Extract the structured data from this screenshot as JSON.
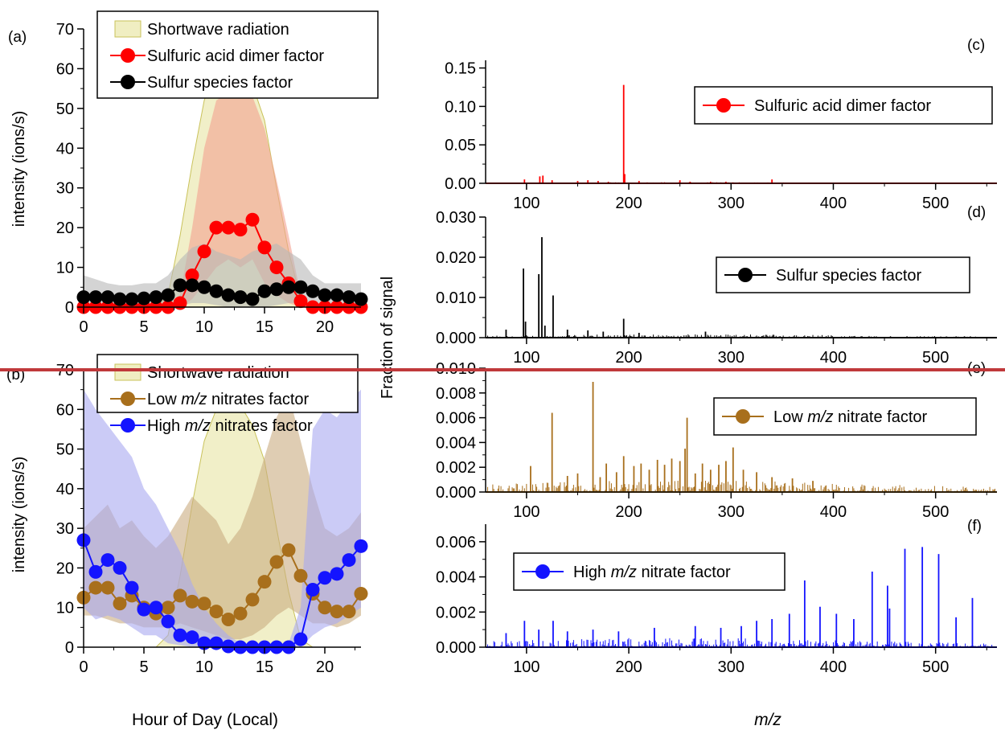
{
  "figure": {
    "xlabel_left": "Hour of Day (Local)",
    "xlabel_right": "m/z",
    "ylabel_left_top": "intensity (ions/s)",
    "ylabel_left_bottom": "intensity (ions/s)",
    "ylabel_right": "Fraction of signal",
    "divider_color": "#c0393b"
  },
  "chart_data": [
    {
      "id": "a",
      "panel_label": "(a)",
      "type": "line",
      "xlim": [
        0,
        23
      ],
      "ylim": [
        0,
        70
      ],
      "xticks": [
        0,
        5,
        10,
        15,
        20
      ],
      "yticks": [
        0,
        10,
        20,
        30,
        40,
        50,
        60,
        70
      ],
      "xlabel": "Hour of Day (Local)",
      "ylabel": "intensity (ions/s)",
      "legend_position": "top",
      "x": [
        0,
        1,
        2,
        3,
        4,
        5,
        6,
        7,
        8,
        9,
        10,
        11,
        12,
        13,
        14,
        15,
        16,
        17,
        18,
        19,
        20,
        21,
        22,
        23
      ],
      "series": [
        {
          "name": "Shortwave radiation",
          "kind": "area",
          "color": "#e6e29a",
          "band_upper": [
            0,
            0,
            0,
            0,
            0,
            0,
            0,
            3,
            18,
            36,
            52,
            60,
            63,
            61,
            56,
            47,
            30,
            14,
            2,
            0,
            0,
            0,
            0,
            0
          ]
        },
        {
          "name": "Sulfuric acid dimer factor",
          "kind": "line-markers",
          "color": "#ff0000",
          "band_color": "#f4a090",
          "values": [
            0,
            0,
            0,
            0,
            0,
            0,
            0,
            0,
            1,
            8,
            14,
            20,
            20,
            19.5,
            22,
            15,
            10,
            6,
            1.5,
            0,
            0,
            0,
            0,
            0
          ],
          "band_lower": [
            0,
            0,
            0,
            0,
            0,
            0,
            0,
            0,
            0,
            2,
            6,
            10,
            12,
            10,
            12,
            6,
            3,
            1,
            0,
            0,
            0,
            0,
            0,
            0
          ],
          "band_upper": [
            0,
            0,
            0,
            0,
            0,
            0,
            0,
            0,
            3,
            20,
            40,
            52,
            54,
            53,
            53,
            45,
            32,
            18,
            3,
            0,
            0,
            0,
            0,
            0
          ]
        },
        {
          "name": "Sulfur species factor",
          "kind": "line-markers",
          "color": "#000000",
          "band_color": "#b8b8b8",
          "values": [
            2.5,
            2.5,
            2.5,
            2,
            2,
            2.2,
            2.5,
            3,
            5.5,
            5.5,
            5,
            4,
            3,
            2.5,
            2,
            4,
            4.5,
            5,
            5,
            4,
            3,
            3,
            2.5,
            2
          ],
          "band_lower": [
            0,
            0,
            0,
            0,
            0,
            0,
            0,
            0,
            0.5,
            1,
            1,
            0.5,
            0,
            0,
            0,
            0,
            0.5,
            1,
            1,
            0.5,
            0,
            0,
            0,
            0
          ],
          "band_upper": [
            8,
            7,
            6,
            5.5,
            5.5,
            6,
            6,
            8,
            12,
            15,
            16,
            14,
            13,
            12,
            14,
            15,
            16,
            14,
            12,
            8,
            6,
            6,
            6,
            6
          ]
        }
      ]
    },
    {
      "id": "b",
      "panel_label": "(b)",
      "type": "line",
      "xlim": [
        0,
        23
      ],
      "ylim": [
        0,
        70
      ],
      "xticks": [
        0,
        5,
        10,
        15,
        20
      ],
      "yticks": [
        0,
        10,
        20,
        30,
        40,
        50,
        60,
        70
      ],
      "xlabel": "Hour of Day (Local)",
      "ylabel": "intensity (ions/s)",
      "legend_position": "top",
      "x": [
        0,
        1,
        2,
        3,
        4,
        5,
        6,
        7,
        8,
        9,
        10,
        11,
        12,
        13,
        14,
        15,
        16,
        17,
        18,
        19,
        20,
        21,
        22,
        23
      ],
      "series": [
        {
          "name": "Shortwave radiation",
          "kind": "area",
          "color": "#e6e29a",
          "band_upper": [
            0,
            0,
            0,
            0,
            0,
            0,
            0,
            3,
            18,
            36,
            52,
            60,
            63,
            61,
            56,
            47,
            30,
            14,
            2,
            0,
            0,
            0,
            0,
            0
          ]
        },
        {
          "name": "Low m/z nitrates factor",
          "kind": "line-markers",
          "color": "#a86f1c",
          "band_color": "#c9ab80",
          "values": [
            12.5,
            15,
            15,
            11,
            13,
            10,
            8.5,
            10,
            13,
            11.5,
            11,
            9,
            7,
            8.5,
            12,
            16.5,
            21.5,
            24.5,
            18,
            13.5,
            10,
            9,
            9,
            13.5
          ],
          "band_lower": [
            8,
            8,
            7,
            6,
            6,
            5,
            5,
            5,
            6,
            5,
            4,
            3,
            2,
            2,
            3,
            5,
            8,
            10,
            8,
            6,
            6,
            5,
            6,
            8
          ],
          "band_upper": [
            30,
            33,
            36,
            30,
            32,
            28,
            25,
            28,
            33,
            38,
            35,
            32,
            26,
            30,
            38,
            48,
            58,
            64,
            52,
            40,
            30,
            28,
            30,
            34
          ]
        },
        {
          "name": "High m/z nitrates factor",
          "kind": "line-markers",
          "color": "#1414ff",
          "band_color": "#a9a9f0",
          "values": [
            27,
            19,
            22,
            20,
            15,
            9.5,
            10,
            6.5,
            3,
            2.5,
            1,
            1,
            0.2,
            0,
            0,
            0,
            0,
            0,
            2,
            14.5,
            17.5,
            18.5,
            22,
            25.5
          ],
          "band_lower": [
            10,
            7,
            8,
            7,
            5,
            3,
            3,
            1,
            0.5,
            0,
            0,
            0,
            0,
            0,
            0,
            0,
            0,
            0,
            0,
            3,
            5,
            6,
            8,
            10
          ],
          "band_upper": [
            65,
            60,
            56,
            52,
            48,
            40,
            36,
            30,
            24,
            16,
            10,
            6,
            3,
            1,
            0.5,
            0.5,
            0.5,
            1,
            10,
            55,
            60,
            58,
            62,
            65
          ]
        }
      ]
    },
    {
      "id": "c",
      "panel_label": "(c)",
      "type": "bar",
      "xlim": [
        60,
        560
      ],
      "ylim": [
        0,
        0.16
      ],
      "xticks": [
        100,
        200,
        300,
        400,
        500
      ],
      "yticks": [
        0.0,
        0.05,
        0.1,
        0.15
      ],
      "ytick_labels": [
        "0.00",
        "0.05",
        "0.10",
        "0.15"
      ],
      "legend": "Sulfuric acid dimer factor",
      "legend_position": "upper-right",
      "color": "#ff0000",
      "peaks": [
        [
          98,
          0.005
        ],
        [
          113,
          0.009
        ],
        [
          116,
          0.01
        ],
        [
          125,
          0.004
        ],
        [
          150,
          0.003
        ],
        [
          160,
          0.004
        ],
        [
          170,
          0.003
        ],
        [
          180,
          0.002
        ],
        [
          195,
          0.128
        ],
        [
          196,
          0.012
        ],
        [
          210,
          0.003
        ],
        [
          250,
          0.004
        ],
        [
          260,
          0.002
        ],
        [
          280,
          0.002
        ],
        [
          295,
          0.002
        ],
        [
          340,
          0.005
        ]
      ],
      "noise_level": 0.0012
    },
    {
      "id": "d",
      "panel_label": "(d)",
      "type": "bar",
      "xlim": [
        60,
        560
      ],
      "ylim": [
        0,
        0.03
      ],
      "xticks": [
        100,
        200,
        300,
        400,
        500
      ],
      "yticks": [
        0.0,
        0.01,
        0.02,
        0.03
      ],
      "ytick_labels": [
        "0.000",
        "0.010",
        "0.020",
        "0.030"
      ],
      "legend": "Sulfur species factor",
      "legend_position": "right",
      "color": "#000000",
      "peaks": [
        [
          80,
          0.002
        ],
        [
          97,
          0.0172
        ],
        [
          99,
          0.004
        ],
        [
          112,
          0.0158
        ],
        [
          115,
          0.025
        ],
        [
          118,
          0.003
        ],
        [
          126,
          0.0105
        ],
        [
          140,
          0.002
        ],
        [
          160,
          0.0018
        ],
        [
          175,
          0.0015
        ],
        [
          195,
          0.0047
        ],
        [
          210,
          0.0012
        ],
        [
          275,
          0.0015
        ]
      ],
      "noise_level": 0.0007
    },
    {
      "id": "e",
      "panel_label": "(e)",
      "type": "bar",
      "xlim": [
        60,
        560
      ],
      "ylim": [
        0,
        0.01
      ],
      "xticks": [
        100,
        200,
        300,
        400,
        500
      ],
      "yticks": [
        0.0,
        0.002,
        0.004,
        0.006,
        0.008,
        0.01
      ],
      "ytick_labels": [
        "0.000",
        "0.002",
        "0.004",
        "0.006",
        "0.008",
        "0.010"
      ],
      "legend": "Low m/z nitrate factor",
      "legend_position": "right",
      "color": "#a86f1c",
      "peaks": [
        [
          104,
          0.0021
        ],
        [
          125,
          0.0064
        ],
        [
          140,
          0.0013
        ],
        [
          150,
          0.0015
        ],
        [
          165,
          0.0089
        ],
        [
          172,
          0.0012
        ],
        [
          178,
          0.0023
        ],
        [
          188,
          0.0016
        ],
        [
          195,
          0.0029
        ],
        [
          205,
          0.0021
        ],
        [
          212,
          0.0023
        ],
        [
          220,
          0.0018
        ],
        [
          228,
          0.0026
        ],
        [
          235,
          0.0022
        ],
        [
          242,
          0.0027
        ],
        [
          250,
          0.0025
        ],
        [
          255,
          0.0035
        ],
        [
          257,
          0.006
        ],
        [
          265,
          0.0015
        ],
        [
          272,
          0.0023
        ],
        [
          280,
          0.0018
        ],
        [
          288,
          0.0022
        ],
        [
          295,
          0.0025
        ],
        [
          302,
          0.0036
        ],
        [
          312,
          0.0018
        ],
        [
          325,
          0.0016
        ],
        [
          340,
          0.0012
        ],
        [
          360,
          0.0011
        ],
        [
          380,
          0.0009
        ]
      ],
      "noise_level": 0.0008
    },
    {
      "id": "f",
      "panel_label": "(f)",
      "type": "bar",
      "xlim": [
        60,
        560
      ],
      "ylim": [
        0,
        0.007
      ],
      "xticks": [
        100,
        200,
        300,
        400,
        500
      ],
      "yticks": [
        0.0,
        0.002,
        0.004,
        0.006
      ],
      "ytick_labels": [
        "0.000",
        "0.002",
        "0.004",
        "0.006"
      ],
      "legend": "High m/z nitrate factor",
      "legend_position": "upper-left",
      "color": "#1414ff",
      "peaks": [
        [
          80,
          0.0008
        ],
        [
          98,
          0.0015
        ],
        [
          112,
          0.001
        ],
        [
          126,
          0.0015
        ],
        [
          140,
          0.0009
        ],
        [
          165,
          0.001
        ],
        [
          190,
          0.0009
        ],
        [
          225,
          0.0011
        ],
        [
          265,
          0.0012
        ],
        [
          290,
          0.0011
        ],
        [
          310,
          0.0012
        ],
        [
          325,
          0.0015
        ],
        [
          340,
          0.0016
        ],
        [
          357,
          0.0019
        ],
        [
          372,
          0.0038
        ],
        [
          387,
          0.0023
        ],
        [
          403,
          0.0019
        ],
        [
          420,
          0.0016
        ],
        [
          438,
          0.0043
        ],
        [
          453,
          0.0035
        ],
        [
          455,
          0.0022
        ],
        [
          470,
          0.0056
        ],
        [
          487,
          0.0057
        ],
        [
          503,
          0.0053
        ],
        [
          520,
          0.0017
        ],
        [
          536,
          0.0028
        ]
      ],
      "noise_level": 0.00045
    }
  ]
}
